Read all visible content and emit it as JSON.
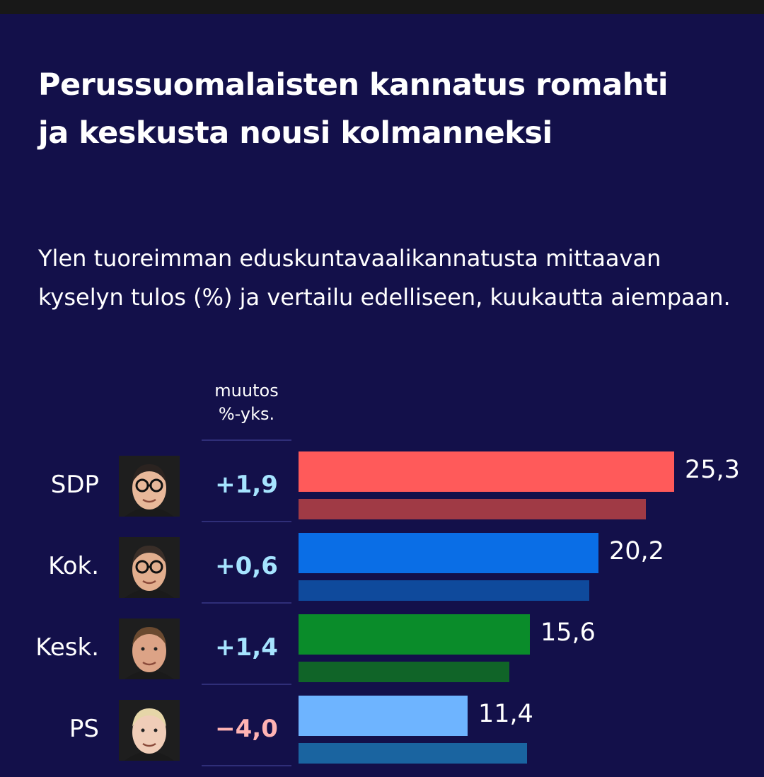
{
  "title": "Perussuomalaisten kannatus romahti ja keskusta nousi kolmanneksi",
  "subtitle": "Ylen tuoreimman eduskuntavaalikannatusta mittaavan kyselyn tulos (%) ja vertailu edelliseen, kuukautta aiempaan.",
  "change_header": {
    "line1": "muutos",
    "line2": "%-yks."
  },
  "chart_data": {
    "type": "bar",
    "orientation": "horizontal",
    "title": "Perussuomalaisten kannatus romahti ja keskusta nousi kolmanneksi",
    "subtitle": "Ylen tuoreimman eduskuntavaalikannatusta mittaavan kyselyn tulos (%) ja vertailu edelliseen, kuukautta aiempaan.",
    "categories": [
      "SDP",
      "Kok.",
      "Kesk.",
      "PS"
    ],
    "series": [
      {
        "values": [
          25.3,
          20.2,
          15.6,
          11.4
        ],
        "colors": [
          "#ff5a5a",
          "#0a6ee6",
          "#0a8c2a",
          "#6eb4ff"
        ]
      },
      {
        "values": [
          23.4,
          19.6,
          14.2,
          15.4
        ],
        "colors": [
          "#a03a45",
          "#0f4a9c",
          "#106428",
          "#1a64a0"
        ]
      }
    ],
    "value_labels": [
      "25,3",
      "20,2",
      "15,6",
      "11,4"
    ],
    "change_labels": [
      "+1,9",
      "+0,6",
      "+1,4",
      "−4,0"
    ],
    "changes": [
      1.9,
      0.6,
      1.4,
      -4.0
    ],
    "xlim": [
      0,
      25.3
    ],
    "grid": false,
    "legend": "none"
  }
}
